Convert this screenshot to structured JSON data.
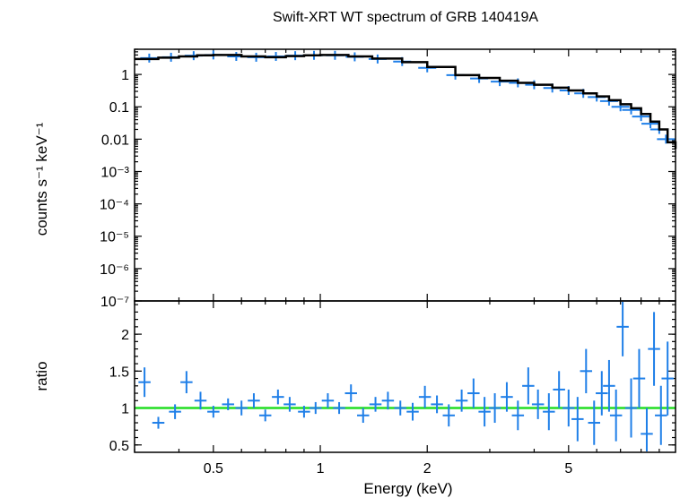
{
  "chart_data": [
    {
      "type": "scatter",
      "panel": "spectrum",
      "title": "Swift-XRT WT spectrum of GRB 140419A",
      "ylabel": "counts s⁻¹ keV⁻¹",
      "yscale": "log",
      "xscale": "log",
      "xlim": [
        0.3,
        10
      ],
      "ylim": [
        1e-07,
        6
      ],
      "y_ticks": [
        {
          "v": 1,
          "label": "1"
        },
        {
          "v": 0.1,
          "label": "0.1"
        },
        {
          "v": 0.01,
          "label": "0.01"
        },
        {
          "v": 0.001,
          "label": "10⁻³"
        },
        {
          "v": 0.0001,
          "label": "10⁻⁴"
        },
        {
          "v": 1e-05,
          "label": "10⁻⁵"
        },
        {
          "v": 1e-06,
          "label": "10⁻⁶"
        },
        {
          "v": 1e-07,
          "label": "10⁻⁷"
        }
      ],
      "series": [
        {
          "color": "#1f7fe8",
          "x": [
            0.33,
            0.38,
            0.44,
            0.5,
            0.58,
            0.66,
            0.75,
            0.85,
            0.96,
            1.1,
            1.25,
            1.45,
            1.7,
            2.0,
            2.4,
            2.8,
            3.2,
            3.6,
            4.0,
            4.5,
            5.0,
            5.5,
            6.0,
            6.5,
            7.0,
            7.5,
            8.0,
            8.5,
            9.0,
            9.4
          ],
          "y": [
            3.2,
            3.4,
            3.8,
            4.0,
            3.6,
            3.4,
            3.6,
            3.8,
            3.9,
            3.9,
            3.5,
            3.0,
            2.5,
            1.6,
            0.95,
            0.75,
            0.6,
            0.55,
            0.48,
            0.38,
            0.32,
            0.26,
            0.2,
            0.15,
            0.1,
            0.08,
            0.05,
            0.03,
            0.02,
            0.01
          ]
        },
        {
          "name": "model",
          "color": "#000000",
          "x": [
            0.3,
            0.35,
            0.4,
            0.45,
            0.5,
            0.6,
            0.7,
            0.8,
            0.9,
            1.0,
            1.2,
            1.4,
            1.7,
            2.0,
            2.4,
            2.8,
            3.2,
            3.6,
            4.0,
            4.5,
            5.0,
            5.5,
            6.0,
            6.5,
            7.0,
            7.5,
            8.0,
            8.5,
            9.0,
            9.5,
            10.0
          ],
          "y": [
            3.0,
            3.3,
            3.6,
            3.9,
            4.0,
            3.6,
            3.4,
            3.7,
            3.9,
            4.0,
            3.6,
            3.1,
            2.4,
            1.7,
            0.95,
            0.78,
            0.64,
            0.55,
            0.48,
            0.39,
            0.32,
            0.26,
            0.21,
            0.16,
            0.12,
            0.09,
            0.06,
            0.035,
            0.02,
            0.008,
            0.005
          ]
        }
      ]
    },
    {
      "type": "scatter",
      "panel": "ratio",
      "xlabel": "Energy (keV)",
      "ylabel": "ratio",
      "xscale": "log",
      "xlim": [
        0.3,
        10
      ],
      "ylim": [
        0.4,
        2.45
      ],
      "x_ticks": [
        {
          "v": 0.5,
          "label": "0.5"
        },
        {
          "v": 1,
          "label": "1"
        },
        {
          "v": 2,
          "label": "2"
        },
        {
          "v": 5,
          "label": "5"
        }
      ],
      "y_ticks": [
        {
          "v": 0.5,
          "label": "0.5"
        },
        {
          "v": 1,
          "label": "1"
        },
        {
          "v": 1.5,
          "label": "1.5"
        },
        {
          "v": 2,
          "label": "2"
        }
      ],
      "reference_line": {
        "y": 1,
        "color": "#22dd22"
      },
      "series": [
        {
          "color": "#1f7fe8",
          "x": [
            0.32,
            0.35,
            0.39,
            0.42,
            0.46,
            0.5,
            0.55,
            0.6,
            0.65,
            0.7,
            0.76,
            0.82,
            0.9,
            0.97,
            1.05,
            1.13,
            1.22,
            1.32,
            1.43,
            1.55,
            1.68,
            1.82,
            1.97,
            2.13,
            2.3,
            2.5,
            2.7,
            2.9,
            3.1,
            3.35,
            3.6,
            3.85,
            4.1,
            4.4,
            4.7,
            5.0,
            5.3,
            5.6,
            5.9,
            6.2,
            6.5,
            6.8,
            7.1,
            7.5,
            7.9,
            8.3,
            8.7,
            9.1,
            9.5
          ],
          "y": [
            1.35,
            0.8,
            0.95,
            1.35,
            1.1,
            0.95,
            1.05,
            1.0,
            1.1,
            0.9,
            1.15,
            1.05,
            0.95,
            1.0,
            1.1,
            1.0,
            1.2,
            0.9,
            1.05,
            1.1,
            1.0,
            0.95,
            1.15,
            1.05,
            0.9,
            1.1,
            1.2,
            0.95,
            1.0,
            1.15,
            0.9,
            1.3,
            1.05,
            0.95,
            1.25,
            1.0,
            0.85,
            1.5,
            0.8,
            1.2,
            1.3,
            0.9,
            2.1,
            1.0,
            1.4,
            0.65,
            1.8,
            0.9,
            1.4
          ],
          "yerr": [
            0.2,
            0.08,
            0.1,
            0.15,
            0.12,
            0.08,
            0.08,
            0.1,
            0.1,
            0.08,
            0.1,
            0.1,
            0.08,
            0.08,
            0.1,
            0.08,
            0.12,
            0.1,
            0.1,
            0.12,
            0.1,
            0.12,
            0.15,
            0.12,
            0.15,
            0.15,
            0.2,
            0.2,
            0.2,
            0.2,
            0.2,
            0.25,
            0.2,
            0.25,
            0.25,
            0.25,
            0.3,
            0.3,
            0.3,
            0.3,
            0.35,
            0.35,
            0.4,
            0.4,
            0.4,
            0.35,
            0.5,
            0.4,
            0.5
          ]
        }
      ]
    }
  ]
}
